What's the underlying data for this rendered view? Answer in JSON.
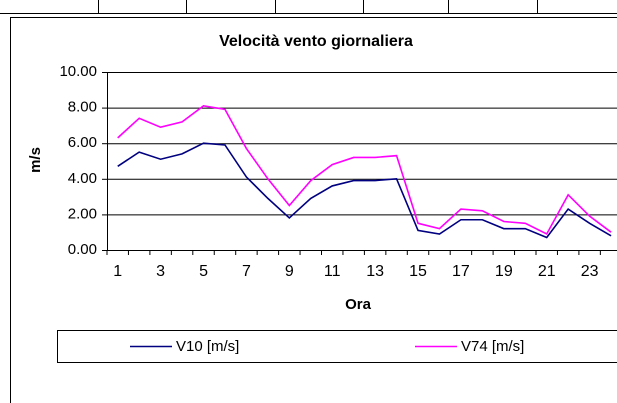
{
  "chart_data": {
    "type": "line",
    "title": "Velocità vento giornaliera",
    "x_label": "Ora",
    "y_label": "m/s",
    "categories": [
      1,
      null,
      3,
      null,
      5,
      null,
      7,
      null,
      9,
      null,
      11,
      null,
      13,
      null,
      15,
      null,
      17,
      null,
      19,
      null,
      21,
      null,
      23,
      null
    ],
    "series": [
      {
        "name": "V10 [m/s]",
        "color": "#000080",
        "values": [
          4.7,
          5.5,
          5.1,
          5.4,
          6.0,
          5.9,
          4.1,
          2.9,
          1.8,
          2.9,
          3.6,
          3.9,
          3.9,
          4.0,
          1.1,
          0.9,
          1.7,
          1.7,
          1.2,
          1.2,
          0.7,
          2.3,
          1.5,
          0.8
        ]
      },
      {
        "name": "V74 [m/s]",
        "color": "#ff00ff",
        "values": [
          6.3,
          7.4,
          6.9,
          7.2,
          8.1,
          7.9,
          5.7,
          4.0,
          2.5,
          3.9,
          4.8,
          5.2,
          5.2,
          5.3,
          1.5,
          1.2,
          2.3,
          2.2,
          1.6,
          1.5,
          0.9,
          3.1,
          1.9,
          1.0
        ]
      }
    ],
    "ylim": [
      0,
      10
    ],
    "yticks": [
      {
        "value": 0,
        "label": "0.00"
      },
      {
        "value": 2,
        "label": "2.00"
      },
      {
        "value": 4,
        "label": "4.00"
      },
      {
        "value": 6,
        "label": "6.00"
      },
      {
        "value": 8,
        "label": "8.00"
      },
      {
        "value": 10,
        "label": "10.00"
      }
    ],
    "grid": true,
    "legend": "bottom"
  }
}
